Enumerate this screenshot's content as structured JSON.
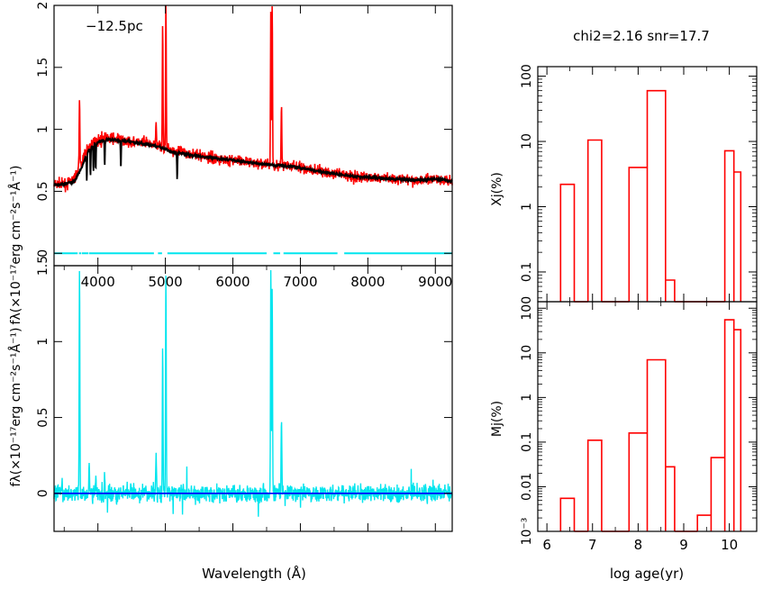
{
  "annotations": {
    "distance_label": "−12.5pc",
    "fit_stats": "chi2=2.16 snr=17.7",
    "x_label_left": "Wavelength (Å)",
    "x_label_right": "log age(yr)",
    "y_label_flux": "fλ(×10⁻¹⁷erg cm⁻²s⁻¹Å⁻¹)",
    "y_label_xj": "Xj(%)",
    "y_label_mj": "Mj(%)"
  },
  "colors": {
    "observed": "#ff0000",
    "model": "#000000",
    "residual": "#00e5ee",
    "zero_line": "#0000ff",
    "mask": "#00e5ee",
    "histogram": "#ff0000"
  },
  "chart_data": [
    {
      "id": "spectrum_fit",
      "type": "line",
      "xlim": [
        3350,
        9250
      ],
      "ylim": [
        -0.1,
        2
      ],
      "xticks": [
        4000,
        5000,
        6000,
        7000,
        8000,
        9000
      ],
      "yticks": [
        0,
        0.5,
        1,
        1.5,
        2
      ],
      "ytick_labels": [
        "0",
        "0.5",
        "1",
        "1.5",
        "2"
      ],
      "observed_continuum": [
        [
          3350,
          0.56
        ],
        [
          3500,
          0.55
        ],
        [
          3650,
          0.6
        ],
        [
          3750,
          0.72
        ],
        [
          3850,
          0.85
        ],
        [
          3950,
          0.9
        ],
        [
          4100,
          0.93
        ],
        [
          4300,
          0.92
        ],
        [
          4500,
          0.9
        ],
        [
          4700,
          0.89
        ],
        [
          4900,
          0.87
        ],
        [
          5100,
          0.83
        ],
        [
          5400,
          0.8
        ],
        [
          5700,
          0.77
        ],
        [
          6000,
          0.75
        ],
        [
          6300,
          0.73
        ],
        [
          6600,
          0.71
        ],
        [
          6900,
          0.7
        ],
        [
          7200,
          0.67
        ],
        [
          7500,
          0.64
        ],
        [
          7800,
          0.62
        ],
        [
          8100,
          0.61
        ],
        [
          8400,
          0.6
        ],
        [
          8700,
          0.59
        ],
        [
          9000,
          0.6
        ],
        [
          9250,
          0.58
        ]
      ],
      "observed_lines": [
        {
          "wavelength": 3727,
          "peak": 1.25
        },
        {
          "wavelength": 4861,
          "peak": 1.05
        },
        {
          "wavelength": 4959,
          "peak": 1.85
        },
        {
          "wavelength": 5007,
          "peak": 2.0
        },
        {
          "wavelength": 6563,
          "peak": 2.0
        },
        {
          "wavelength": 6583,
          "peak": 2.0
        },
        {
          "wavelength": 6720,
          "peak": 1.2
        }
      ],
      "model": [
        [
          3350,
          0.55
        ],
        [
          3500,
          0.56
        ],
        [
          3650,
          0.58
        ],
        [
          3750,
          0.68
        ],
        [
          3850,
          0.82
        ],
        [
          3950,
          0.88
        ],
        [
          4100,
          0.92
        ],
        [
          4300,
          0.91
        ],
        [
          4500,
          0.9
        ],
        [
          4700,
          0.88
        ],
        [
          4900,
          0.86
        ],
        [
          5100,
          0.82
        ],
        [
          5400,
          0.79
        ],
        [
          5700,
          0.77
        ],
        [
          6000,
          0.75
        ],
        [
          6300,
          0.73
        ],
        [
          6600,
          0.71
        ],
        [
          6900,
          0.7
        ],
        [
          7200,
          0.67
        ],
        [
          7500,
          0.64
        ],
        [
          7800,
          0.62
        ],
        [
          8100,
          0.61
        ],
        [
          8400,
          0.6
        ],
        [
          8700,
          0.59
        ],
        [
          9000,
          0.6
        ],
        [
          9250,
          0.58
        ]
      ],
      "model_absorption": [
        3835,
        3889,
        3933,
        3968,
        4101,
        4340,
        5175
      ],
      "mask_segments": [
        [
          3350,
          3700
        ],
        [
          3720,
          3750
        ],
        [
          3760,
          3860
        ],
        [
          3870,
          4830
        ],
        [
          4890,
          4950
        ],
        [
          5030,
          6500
        ],
        [
          6600,
          6700
        ],
        [
          6750,
          7550
        ],
        [
          7650,
          9250
        ]
      ]
    },
    {
      "id": "residual",
      "type": "line",
      "xlim": [
        3350,
        9250
      ],
      "ylim": [
        -0.25,
        1.5
      ],
      "xticks": [
        4000,
        5000,
        6000,
        7000,
        8000,
        9000
      ],
      "yticks": [
        0,
        0.5,
        1,
        1.5
      ],
      "ytick_labels": [
        "0",
        "0.5",
        "1",
        "1.5"
      ],
      "zero_line": 0,
      "residual_lines": [
        {
          "wavelength": 3727,
          "peak": 1.5
        },
        {
          "wavelength": 3869,
          "peak": 0.24
        },
        {
          "wavelength": 3970,
          "peak": 0.15
        },
        {
          "wavelength": 4101,
          "peak": 0.12
        },
        {
          "wavelength": 4861,
          "peak": 0.3
        },
        {
          "wavelength": 4959,
          "peak": 0.98
        },
        {
          "wavelength": 5007,
          "peak": 1.5
        },
        {
          "wavelength": 6563,
          "peak": 1.5
        },
        {
          "wavelength": 6583,
          "peak": 1.35
        },
        {
          "wavelength": 6720,
          "peak": 0.5
        }
      ]
    },
    {
      "id": "light_fraction",
      "type": "histogram",
      "xlim": [
        5.8,
        10.6
      ],
      "ylim": [
        0.035,
        140
      ],
      "yscale": "log",
      "yticks": [
        0.1,
        1,
        10,
        100
      ],
      "ytick_labels": [
        "0.1",
        "1",
        "10",
        "100"
      ],
      "bins": [
        [
          6.3,
          6.6,
          2.2
        ],
        [
          6.6,
          6.9,
          0.035
        ],
        [
          6.9,
          7.2,
          10.5
        ],
        [
          7.2,
          7.8,
          0.035
        ],
        [
          7.8,
          8.2,
          4.0
        ],
        [
          8.2,
          8.6,
          60
        ],
        [
          8.6,
          8.8,
          0.075
        ],
        [
          8.8,
          9.9,
          0.035
        ],
        [
          9.9,
          10.1,
          7.2
        ],
        [
          10.1,
          10.25,
          3.4
        ]
      ]
    },
    {
      "id": "mass_fraction",
      "type": "histogram",
      "xlim": [
        5.8,
        10.6
      ],
      "ylim": [
        0.001,
        140
      ],
      "yscale": "log",
      "xticks": [
        6,
        7,
        8,
        9,
        10
      ],
      "yticks": [
        0.001,
        0.01,
        0.1,
        1,
        10,
        100
      ],
      "ytick_labels": [
        "10⁻³",
        "0.01",
        "0.1",
        "1",
        "10",
        "100"
      ],
      "bins": [
        [
          6.3,
          6.6,
          0.0055
        ],
        [
          6.6,
          6.9,
          0.001
        ],
        [
          6.9,
          7.2,
          0.11
        ],
        [
          7.2,
          7.8,
          0.001
        ],
        [
          7.8,
          8.2,
          0.16
        ],
        [
          8.2,
          8.6,
          7.0
        ],
        [
          8.6,
          8.8,
          0.028
        ],
        [
          8.8,
          9.3,
          0.001
        ],
        [
          9.3,
          9.6,
          0.0023
        ],
        [
          9.6,
          9.9,
          0.045
        ],
        [
          9.9,
          10.1,
          55
        ],
        [
          10.1,
          10.25,
          33
        ]
      ]
    }
  ]
}
